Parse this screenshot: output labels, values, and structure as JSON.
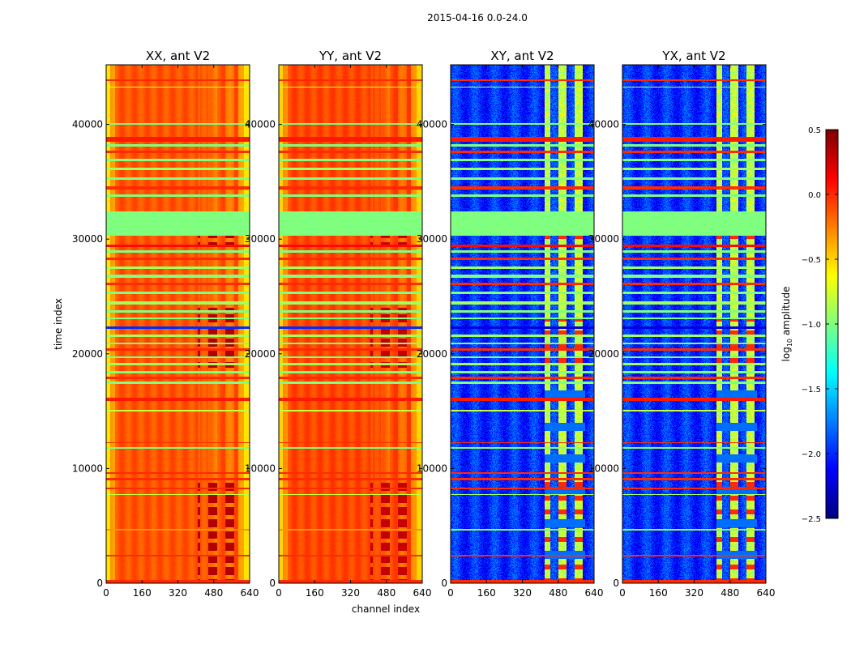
{
  "chart_data": {
    "type": "heatmap",
    "title": "2015-04-16 0.0-24.0",
    "xlabel": "channel index",
    "ylabel": "time index",
    "xlim": [
      0,
      640
    ],
    "ylim": [
      0,
      45200
    ],
    "xticks": [
      0,
      160,
      320,
      480,
      640
    ],
    "yticks": [
      0,
      10000,
      20000,
      30000,
      40000
    ],
    "panels": [
      {
        "title": "XX, ant V2",
        "kind": "auto",
        "base": -0.12,
        "edge": -0.55,
        "rfi_level": 0.35
      },
      {
        "title": "YY, ant V2",
        "kind": "auto",
        "base": -0.08,
        "edge": -0.5,
        "rfi_level": 0.3
      },
      {
        "title": "XY, ant V2",
        "kind": "cross",
        "base": -2.0,
        "edge": -2.0,
        "rfi_level": -0.8
      },
      {
        "title": "YX, ant V2",
        "kind": "cross",
        "base": -2.0,
        "edge": -2.0,
        "rfi_level": -0.8
      }
    ],
    "rfi_channels": [
      410,
      600
    ],
    "rfi_time_ranges": [
      [
        0,
        9000
      ],
      [
        18800,
        24000
      ],
      [
        29500,
        30300
      ]
    ],
    "bands": [
      {
        "t": [
          0,
          300
        ],
        "auto": 0.0,
        "cross": 0.0
      },
      {
        "t": [
          2300,
          2450
        ],
        "auto": 0.0,
        "cross": 0.0
      },
      {
        "t": [
          4600,
          4700
        ],
        "auto": -0.3,
        "cross": -1.0
      },
      {
        "t": [
          7700,
          7800
        ],
        "auto": -0.8,
        "cross": -0.9
      },
      {
        "t": [
          8200,
          8300
        ],
        "auto": 0.0,
        "cross": 0.0
      },
      {
        "t": [
          9000,
          9200
        ],
        "auto": 0.0,
        "cross": 0.0
      },
      {
        "t": [
          9500,
          9700
        ],
        "auto": 0.0,
        "cross": 0.0
      },
      {
        "t": [
          11700,
          11900
        ],
        "auto": -1.0,
        "cross": -1.0
      },
      {
        "t": [
          12200,
          12300
        ],
        "auto": 0.0,
        "cross": 0.0
      },
      {
        "t": [
          15000,
          15100
        ],
        "auto": -0.8,
        "cross": -0.8
      },
      {
        "t": [
          15900,
          16200
        ],
        "auto": 0.05,
        "cross": 0.05
      },
      {
        "t": [
          17400,
          17600
        ],
        "auto": -1.0,
        "cross": -1.0
      },
      {
        "t": [
          17800,
          18000
        ],
        "auto": 0.0,
        "cross": 0.0
      },
      {
        "t": [
          18300,
          18500
        ],
        "auto": -1.0,
        "cross": -1.0
      },
      {
        "t": [
          19000,
          19200
        ],
        "auto": -0.9,
        "cross": -0.9
      },
      {
        "t": [
          19600,
          19800
        ],
        "auto": -1.0,
        "cross": -1.0
      },
      {
        "t": [
          20300,
          20500
        ],
        "auto": 0.0,
        "cross": 0.0
      },
      {
        "t": [
          20800,
          21000
        ],
        "auto": -1.0,
        "cross": -1.0
      },
      {
        "t": [
          21500,
          21700
        ],
        "auto": -0.9,
        "cross": -0.9
      },
      {
        "t": [
          22200,
          22400
        ],
        "auto": -2.0,
        "cross": -2.2
      },
      {
        "t": [
          23000,
          23200
        ],
        "auto": -1.0,
        "cross": -1.0
      },
      {
        "t": [
          23600,
          23800
        ],
        "auto": -1.0,
        "cross": -1.0
      },
      {
        "t": [
          24300,
          24600
        ],
        "auto": -0.9,
        "cross": -0.9
      },
      {
        "t": [
          25200,
          25400
        ],
        "auto": -1.0,
        "cross": -1.0
      },
      {
        "t": [
          26000,
          26200
        ],
        "auto": 0.0,
        "cross": 0.0
      },
      {
        "t": [
          26600,
          26900
        ],
        "auto": -1.0,
        "cross": -1.0
      },
      {
        "t": [
          27400,
          27600
        ],
        "auto": -0.9,
        "cross": -0.9
      },
      {
        "t": [
          28200,
          28400
        ],
        "auto": 0.0,
        "cross": 0.0
      },
      {
        "t": [
          28800,
          29000
        ],
        "auto": -1.0,
        "cross": -1.0
      },
      {
        "t": [
          29300,
          29500
        ],
        "auto": 0.1,
        "cross": 0.1
      },
      {
        "t": [
          30300,
          32400
        ],
        "auto": -1.0,
        "cross": -1.0
      },
      {
        "t": [
          33700,
          33900
        ],
        "auto": -1.0,
        "cross": -1.0
      },
      {
        "t": [
          34300,
          34600
        ],
        "auto": 0.0,
        "cross": 0.0
      },
      {
        "t": [
          35200,
          35400
        ],
        "auto": -1.0,
        "cross": -1.0
      },
      {
        "t": [
          36000,
          36200
        ],
        "auto": -0.9,
        "cross": -0.9
      },
      {
        "t": [
          36800,
          37000
        ],
        "auto": -1.0,
        "cross": -1.0
      },
      {
        "t": [
          37500,
          37700
        ],
        "auto": 0.0,
        "cross": 0.0
      },
      {
        "t": [
          38100,
          38300
        ],
        "auto": -1.0,
        "cross": -1.0
      },
      {
        "t": [
          38500,
          38900
        ],
        "auto": 0.05,
        "cross": 0.05
      },
      {
        "t": [
          40000,
          40150
        ],
        "auto": -1.0,
        "cross": -1.0
      },
      {
        "t": [
          43200,
          43300
        ],
        "auto": -0.8,
        "cross": -0.8
      },
      {
        "t": [
          43800,
          43950
        ],
        "auto": 0.0,
        "cross": 0.0
      }
    ],
    "colorbar": {
      "label": "log10 amplitude",
      "label_main": "log",
      "label_sub": "10",
      "label_rest": " amplitude",
      "range": [
        -2.5,
        0.5
      ],
      "ticks": [
        0.5,
        0.0,
        -0.5,
        -1.0,
        -1.5,
        -2.0,
        -2.5
      ],
      "tick_labels": [
        "0.5",
        "0.0",
        "−0.5",
        "−1.0",
        "−1.5",
        "−2.0",
        "−2.5"
      ],
      "colormap": "jet"
    }
  }
}
